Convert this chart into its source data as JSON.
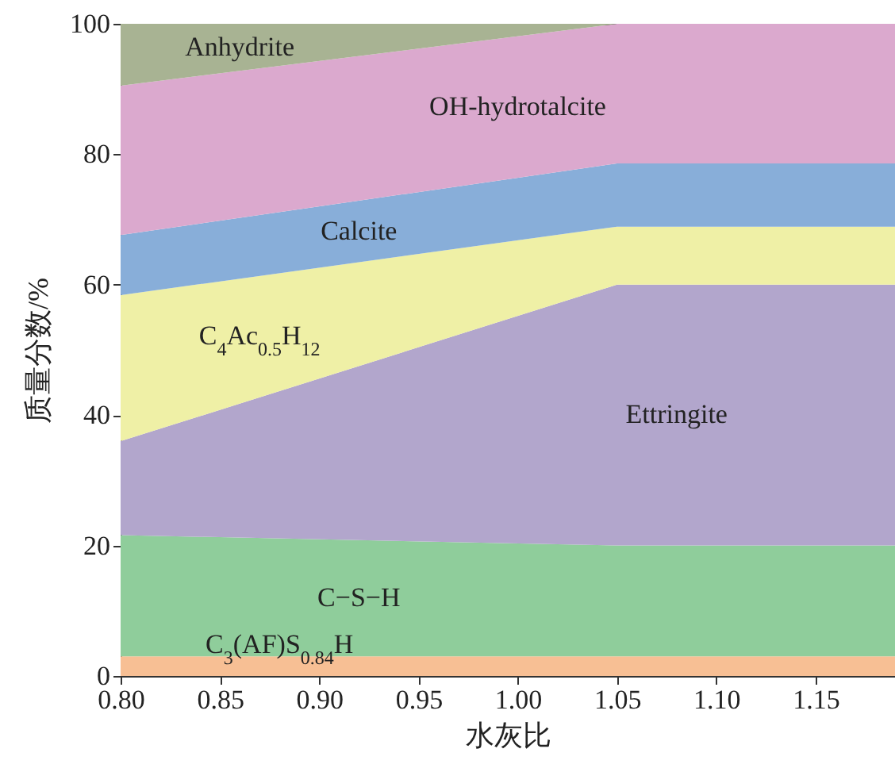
{
  "chart_data": {
    "type": "area",
    "stacked": true,
    "xlabel": "水灰比",
    "ylabel": "质量分数/%",
    "x": [
      0.8,
      1.05,
      1.19
    ],
    "xlim": [
      0.8,
      1.19
    ],
    "xticks": [
      {
        "value": 0.8,
        "label": "0.80"
      },
      0.85,
      {
        "value": 0.9,
        "label": "0.90"
      },
      0.95,
      {
        "value": 1.0,
        "label": "1.00"
      },
      1.05,
      {
        "value": 1.1,
        "label": "1.10"
      },
      1.15
    ],
    "ylim": [
      0,
      100
    ],
    "yticks": [
      0,
      20,
      40,
      60,
      80,
      100
    ],
    "grid": false,
    "series": [
      {
        "name": "C$_{3}$(AF)S$_{0.84}$H",
        "color": "#f7bf94",
        "values": [
          3,
          3,
          3
        ]
      },
      {
        "name": "C−S−H",
        "color": "#8fcd9b",
        "values": [
          18.6,
          17,
          17
        ]
      },
      {
        "name": "Ettringite",
        "color": "#b2a6cc",
        "values": [
          14.4,
          40,
          40
        ]
      },
      {
        "name": "C$_{4}$Ac$_{0.5}$H$_{12}$",
        "color": "#eff0a6",
        "values": [
          22.4,
          8.9,
          8.9
        ]
      },
      {
        "name": "Calcite",
        "color": "#88aed9",
        "values": [
          9.2,
          9.7,
          9.7
        ]
      },
      {
        "name": "OH-hydrotalcite",
        "color": "#dba9ce",
        "values": [
          22.9,
          21.4,
          21.4
        ]
      },
      {
        "name": "Anhydrite",
        "color": "#a8b393",
        "values": [
          9.5,
          0,
          0
        ]
      }
    ]
  }
}
